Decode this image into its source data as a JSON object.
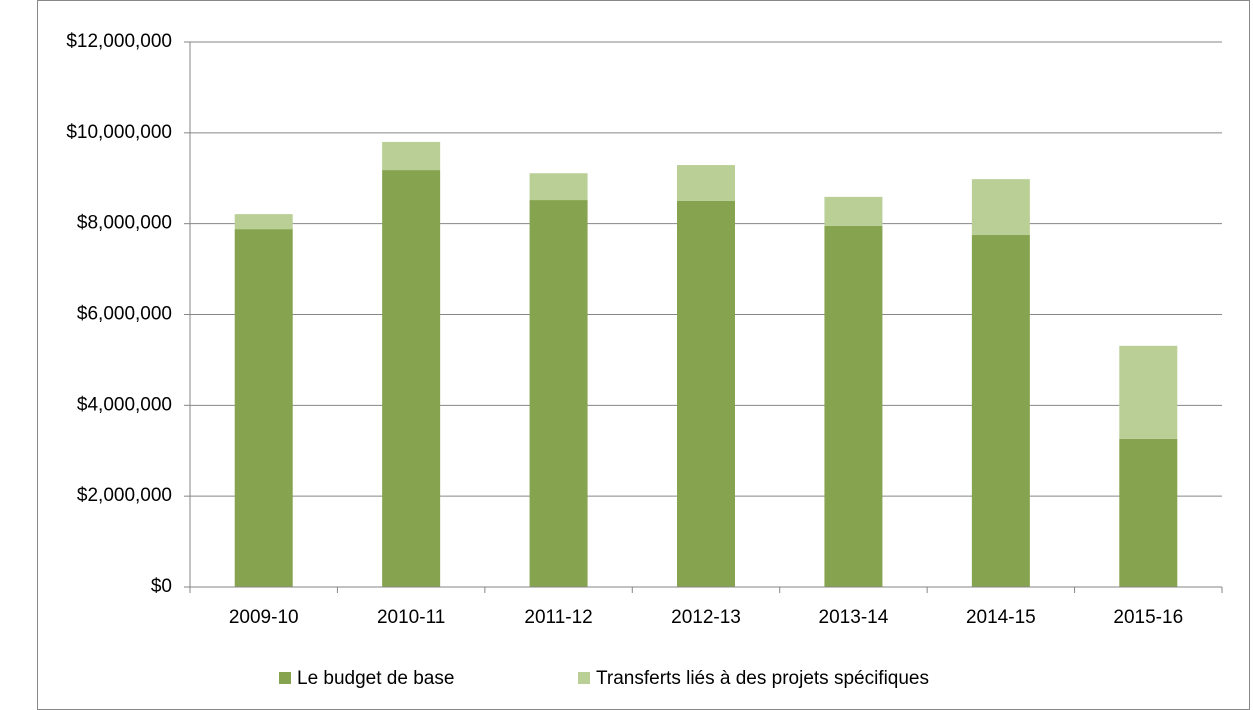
{
  "chart_data": {
    "type": "stacked_bar",
    "categories": [
      "2009-10",
      "2010-11",
      "2011-12",
      "2012-13",
      "2013-14",
      "2014-15",
      "2015-16"
    ],
    "series": [
      {
        "name": "Le budget de base",
        "color": "#86a44f",
        "values": [
          7880000,
          9180000,
          8520000,
          8500000,
          7950000,
          7750000,
          3260000
        ]
      },
      {
        "name": "Transferts liés à des projets spécifiques",
        "color": "#b9cf96",
        "values": [
          330000,
          620000,
          590000,
          790000,
          640000,
          1230000,
          2050000
        ]
      }
    ],
    "ylim": [
      0,
      12000000
    ],
    "yticks": [
      {
        "value": 0,
        "label": "$0"
      },
      {
        "value": 2000000,
        "label": "$2,000,000"
      },
      {
        "value": 4000000,
        "label": "$4,000,000"
      },
      {
        "value": 6000000,
        "label": "$6,000,000"
      },
      {
        "value": 8000000,
        "label": "$8,000,000"
      },
      {
        "value": 10000000,
        "label": "$10,000,000"
      },
      {
        "value": 12000000,
        "label": "$12,000,000"
      }
    ],
    "grid": true,
    "legend": "bottom"
  }
}
